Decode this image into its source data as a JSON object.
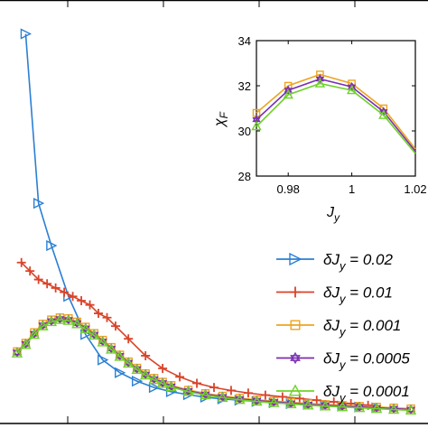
{
  "colors": {
    "s002": "#2b7fd4",
    "s001": "#d9442a",
    "s0001": "#eca51f",
    "s00005": "#7a2fb3",
    "s00001": "#6fd22a"
  },
  "chart_data": [
    {
      "type": "line",
      "title": "",
      "xlabel": "",
      "ylabel": "",
      "grid": false,
      "legend_position": "bottom-right",
      "series": [
        {
          "name": "δJy = 0.02",
          "color_key": "s002",
          "marker": "triangle-right",
          "x": [
            0.06,
            0.09,
            0.12,
            0.16,
            0.2,
            0.24,
            0.28,
            0.32,
            0.36,
            0.4,
            0.44,
            0.48,
            0.52,
            0.56,
            0.6,
            0.64,
            0.68,
            0.72,
            0.76,
            0.8,
            0.84,
            0.88
          ],
          "y": [
            0.92,
            0.52,
            0.42,
            0.3,
            0.21,
            0.15,
            0.12,
            0.1,
            0.085,
            0.075,
            0.068,
            0.062,
            0.058,
            0.055,
            0.052,
            0.049,
            0.047,
            0.045,
            0.043,
            0.041,
            0.039,
            0.037
          ]
        },
        {
          "name": "δJy = 0.01",
          "color_key": "s001",
          "marker": "plus",
          "x": [
            0.05,
            0.07,
            0.09,
            0.11,
            0.13,
            0.15,
            0.17,
            0.19,
            0.21,
            0.23,
            0.25,
            0.27,
            0.3,
            0.34,
            0.38,
            0.42,
            0.46,
            0.5,
            0.54,
            0.58,
            0.62,
            0.66,
            0.7,
            0.74,
            0.78,
            0.82,
            0.86
          ],
          "y": [
            0.38,
            0.36,
            0.34,
            0.33,
            0.32,
            0.31,
            0.3,
            0.29,
            0.28,
            0.26,
            0.25,
            0.23,
            0.2,
            0.16,
            0.13,
            0.11,
            0.095,
            0.085,
            0.078,
            0.072,
            0.067,
            0.063,
            0.059,
            0.055,
            0.051,
            0.047,
            0.043
          ]
        },
        {
          "name": "δJy = 0.001",
          "color_key": "s0001",
          "marker": "square",
          "x": [
            0.04,
            0.06,
            0.08,
            0.1,
            0.12,
            0.14,
            0.16,
            0.18,
            0.2,
            0.22,
            0.24,
            0.26,
            0.28,
            0.3,
            0.32,
            0.34,
            0.36,
            0.38,
            0.4,
            0.44,
            0.48,
            0.52,
            0.56,
            0.6,
            0.64,
            0.68,
            0.72,
            0.76,
            0.8,
            0.84,
            0.88,
            0.92,
            0.96
          ],
          "y": [
            0.17,
            0.19,
            0.215,
            0.235,
            0.245,
            0.25,
            0.248,
            0.24,
            0.228,
            0.213,
            0.197,
            0.18,
            0.162,
            0.146,
            0.131,
            0.118,
            0.107,
            0.098,
            0.09,
            0.079,
            0.071,
            0.065,
            0.06,
            0.056,
            0.053,
            0.05,
            0.047,
            0.045,
            0.043,
            0.041,
            0.039,
            0.037,
            0.035
          ]
        },
        {
          "name": "δJy = 0.0005",
          "color_key": "s00005",
          "marker": "hexagram",
          "x": [
            0.04,
            0.06,
            0.08,
            0.1,
            0.12,
            0.14,
            0.16,
            0.18,
            0.2,
            0.22,
            0.24,
            0.26,
            0.28,
            0.3,
            0.32,
            0.34,
            0.36,
            0.38,
            0.4,
            0.44,
            0.48,
            0.52,
            0.56,
            0.6,
            0.64,
            0.68,
            0.72,
            0.76,
            0.8,
            0.84,
            0.88,
            0.92,
            0.96
          ],
          "y": [
            0.168,
            0.188,
            0.212,
            0.232,
            0.242,
            0.247,
            0.245,
            0.237,
            0.225,
            0.21,
            0.194,
            0.177,
            0.16,
            0.144,
            0.129,
            0.116,
            0.105,
            0.096,
            0.088,
            0.077,
            0.069,
            0.063,
            0.058,
            0.054,
            0.051,
            0.048,
            0.045,
            0.043,
            0.041,
            0.039,
            0.037,
            0.035,
            0.033
          ]
        },
        {
          "name": "δJy = 0.0001",
          "color_key": "s00001",
          "marker": "triangle-up",
          "x": [
            0.04,
            0.06,
            0.08,
            0.1,
            0.12,
            0.14,
            0.16,
            0.18,
            0.2,
            0.22,
            0.24,
            0.26,
            0.28,
            0.3,
            0.32,
            0.34,
            0.36,
            0.38,
            0.4,
            0.44,
            0.48,
            0.52,
            0.56,
            0.6,
            0.64,
            0.68,
            0.72,
            0.76,
            0.8,
            0.84,
            0.88,
            0.92,
            0.96
          ],
          "y": [
            0.166,
            0.186,
            0.21,
            0.23,
            0.24,
            0.245,
            0.243,
            0.235,
            0.223,
            0.208,
            0.192,
            0.175,
            0.158,
            0.142,
            0.127,
            0.114,
            0.103,
            0.094,
            0.086,
            0.075,
            0.067,
            0.061,
            0.056,
            0.052,
            0.049,
            0.046,
            0.043,
            0.041,
            0.039,
            0.037,
            0.035,
            0.033,
            0.031
          ]
        }
      ]
    },
    {
      "type": "line",
      "title": "",
      "xlabel": "J_y",
      "ylabel": "χ_F",
      "xlim": [
        0.97,
        1.02
      ],
      "ylim": [
        28,
        34
      ],
      "x_ticks": [
        "0.98",
        "1",
        "1.02"
      ],
      "y_ticks": [
        "28",
        "30",
        "32",
        "34"
      ],
      "grid": false,
      "series": [
        {
          "color_key": "s0001",
          "marker": "square",
          "x": [
            0.97,
            0.98,
            0.99,
            1.0,
            1.01,
            1.02
          ],
          "y": [
            30.8,
            32.0,
            32.5,
            32.1,
            31.0,
            29.2
          ]
        },
        {
          "color_key": "s00005",
          "marker": "hexagram",
          "x": [
            0.97,
            0.98,
            0.99,
            1.0,
            1.01,
            1.02
          ],
          "y": [
            30.5,
            31.8,
            32.3,
            31.95,
            30.85,
            29.1
          ]
        },
        {
          "color_key": "s00001",
          "marker": "triangle-up",
          "x": [
            0.97,
            0.98,
            0.99,
            1.0,
            1.01,
            1.02
          ],
          "y": [
            30.2,
            31.6,
            32.1,
            31.8,
            30.7,
            29.0
          ]
        }
      ]
    }
  ],
  "legend": {
    "entries": [
      {
        "prefix": "δJ",
        "sub": "y",
        "value": " = 0.02",
        "color_key": "s002",
        "marker": "triangle-right"
      },
      {
        "prefix": "δJ",
        "sub": "y",
        "value": " = 0.01",
        "color_key": "s001",
        "marker": "plus"
      },
      {
        "prefix": "δJ",
        "sub": "y",
        "value": " = 0.001",
        "color_key": "s0001",
        "marker": "square"
      },
      {
        "prefix": "δJ",
        "sub": "y",
        "value": " = 0.0005",
        "color_key": "s00005",
        "marker": "hexagram"
      },
      {
        "prefix": "δJ",
        "sub": "y",
        "value": " = 0.0001",
        "color_key": "s00001",
        "marker": "triangle-up"
      }
    ]
  },
  "inset_axis_text": {
    "ylabel_main": "χ",
    "ylabel_sub": "F",
    "xlabel_main": "J",
    "xlabel_sub": "y"
  }
}
